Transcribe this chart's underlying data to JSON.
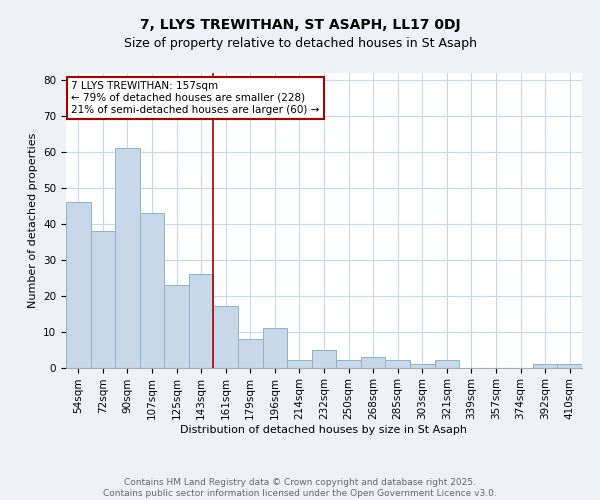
{
  "title1": "7, LLYS TREWITHAN, ST ASAPH, LL17 0DJ",
  "title2": "Size of property relative to detached houses in St Asaph",
  "xlabel": "Distribution of detached houses by size in St Asaph",
  "ylabel": "Number of detached properties",
  "bar_labels": [
    "54sqm",
    "72sqm",
    "90sqm",
    "107sqm",
    "125sqm",
    "143sqm",
    "161sqm",
    "179sqm",
    "196sqm",
    "214sqm",
    "232sqm",
    "250sqm",
    "268sqm",
    "285sqm",
    "303sqm",
    "321sqm",
    "339sqm",
    "357sqm",
    "374sqm",
    "392sqm",
    "410sqm"
  ],
  "bar_values": [
    46,
    38,
    61,
    43,
    23,
    26,
    17,
    8,
    11,
    2,
    5,
    2,
    3,
    2,
    1,
    2,
    0,
    0,
    0,
    1,
    1
  ],
  "bar_color": "#c8d8e8",
  "bar_edgecolor": "#8ab4cc",
  "ylim": [
    0,
    82
  ],
  "yticks": [
    0,
    10,
    20,
    30,
    40,
    50,
    60,
    70,
    80
  ],
  "vline_x_index": 6,
  "vline_color": "#aa0000",
  "annotation_text": "7 LLYS TREWITHAN: 157sqm\n← 79% of detached houses are smaller (228)\n21% of semi-detached houses are larger (60) →",
  "annotation_box_facecolor": "#ffffff",
  "annotation_box_edgecolor": "#aa0000",
  "footer1": "Contains HM Land Registry data © Crown copyright and database right 2025.",
  "footer2": "Contains public sector information licensed under the Open Government Licence v3.0.",
  "bg_color": "#eef2f7",
  "plot_bg_color": "#ffffff",
  "grid_color": "#c8d8e8",
  "title1_fontsize": 10,
  "title2_fontsize": 9,
  "axis_label_fontsize": 8,
  "tick_fontsize": 7.5,
  "annotation_fontsize": 7.5,
  "footer_fontsize": 6.5
}
